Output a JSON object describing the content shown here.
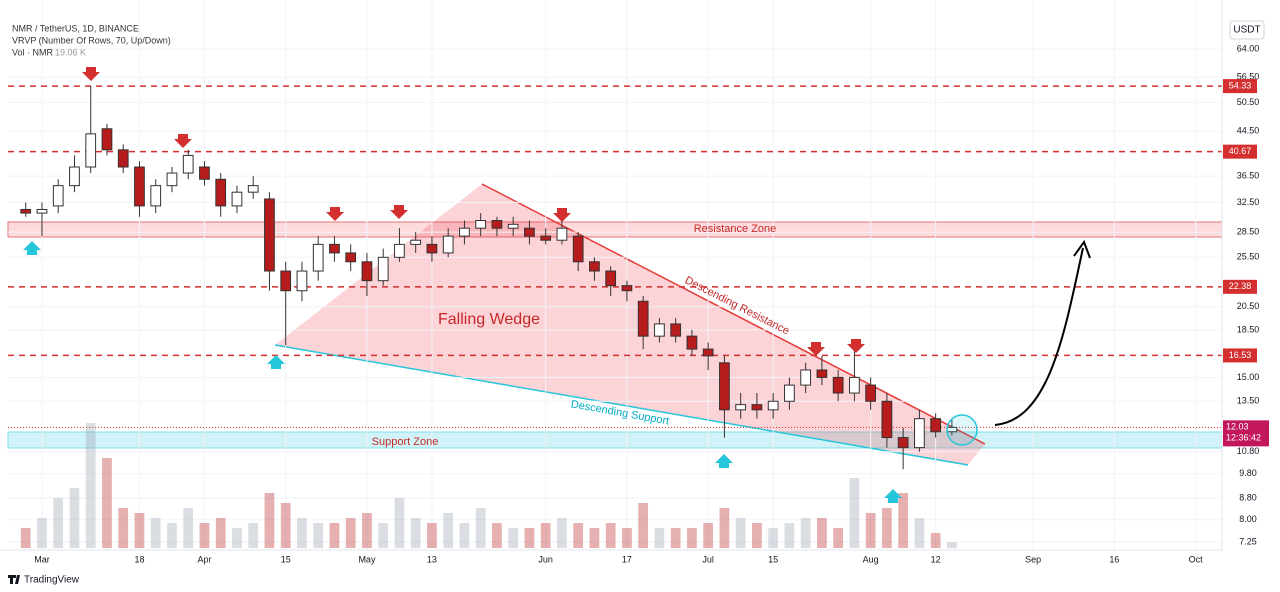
{
  "chart_data": {
    "type": "candlestick",
    "title": "NMR / TetherUS, 1D, BINANCE",
    "indicator": "VRVP (Number Of Rows, 70, Up/Down)",
    "volume_label": "Vol · NMR",
    "volume_value": "19.06 K",
    "currency": "USDT",
    "log_scale": true,
    "grid": true,
    "up_color": "#ffffff",
    "down_color": "#b71c1c",
    "categories": [
      null,
      "Mar",
      null,
      null,
      null,
      null,
      null,
      "18",
      null,
      null,
      null,
      "Apr",
      null,
      null,
      null,
      null,
      "15",
      null,
      null,
      null,
      null,
      "May",
      null,
      null,
      null,
      "13",
      null,
      null,
      null,
      null,
      null,
      null,
      "Jun",
      null,
      null,
      null,
      null,
      "17",
      null,
      null,
      null,
      null,
      "Jul",
      null,
      null,
      null,
      "15",
      null,
      null,
      null,
      null,
      null,
      "Aug",
      null,
      null,
      null,
      "12",
      null,
      null,
      null,
      null,
      null,
      "Sep",
      null,
      null,
      null,
      null,
      "16",
      null,
      null,
      null,
      null,
      "Oct",
      null
    ],
    "open": [
      31.5,
      31,
      32,
      35,
      38,
      45,
      41,
      38,
      32,
      35,
      37,
      38,
      36,
      32,
      34,
      33,
      24,
      22,
      24,
      27,
      26,
      25,
      23,
      25.5,
      27,
      27,
      26,
      28,
      29,
      30,
      29,
      29,
      28,
      27.5,
      28,
      25,
      24,
      22.5,
      21,
      18,
      19,
      18,
      17,
      16,
      13,
      13.3,
      13,
      13.5,
      14.5,
      15.5,
      15,
      14,
      14.5,
      13.5,
      11.5,
      11,
      12.5,
      11.8,
      null,
      null,
      null,
      null,
      null,
      null,
      null,
      null,
      null,
      null,
      null,
      null,
      null,
      null,
      null,
      null
    ],
    "high": [
      32.5,
      32.5,
      36,
      40,
      54.33,
      46,
      42,
      39,
      36,
      38,
      41,
      39,
      37,
      35,
      36.5,
      34,
      25,
      25,
      28,
      28,
      27,
      26,
      26.5,
      29,
      28.5,
      28,
      29,
      30,
      31,
      30.5,
      30.5,
      30,
      29,
      30,
      28.5,
      25.5,
      24.5,
      23,
      21.5,
      19.5,
      19.5,
      18.5,
      17.5,
      16.5,
      14,
      14,
      14,
      15,
      16,
      16.5,
      15.5,
      17,
      15,
      14,
      12,
      13,
      12.8,
      12.5,
      null,
      null,
      null,
      null,
      null,
      null,
      null,
      null,
      null,
      null,
      null,
      null,
      null,
      null,
      null,
      null
    ],
    "low": [
      30.5,
      28,
      31,
      34,
      37,
      40,
      37,
      30.5,
      31,
      34,
      36,
      35,
      30.5,
      31,
      33,
      22,
      17.3,
      21,
      23,
      25,
      24,
      21.5,
      22.5,
      25,
      26,
      25,
      25.5,
      27,
      28,
      28,
      28,
      27,
      27,
      27,
      24,
      23,
      21.5,
      21,
      17,
      17.5,
      17.5,
      16.5,
      15.5,
      11.5,
      12.5,
      12.5,
      12.5,
      13,
      14,
      14.5,
      13.5,
      13.5,
      13,
      11,
      10,
      10.8,
      11.5,
      11.6,
      null,
      null,
      null,
      null,
      null,
      null,
      null,
      null,
      null,
      null,
      null,
      null,
      null,
      null,
      null,
      null
    ],
    "close": [
      31,
      31.5,
      35,
      38,
      44,
      41,
      38,
      32,
      35,
      37,
      40,
      36,
      32,
      34,
      35,
      24,
      22,
      24,
      27,
      26,
      25,
      23,
      25.5,
      27,
      27.5,
      26,
      28,
      29,
      30,
      29,
      29.5,
      28,
      27.5,
      29,
      25,
      24,
      22.5,
      22,
      18,
      19,
      18,
      17,
      16.5,
      13,
      13.3,
      13,
      13.5,
      14.5,
      15.5,
      15,
      14,
      15,
      13.5,
      11.5,
      11,
      12.5,
      11.8,
      12.03,
      null,
      null,
      null,
      null,
      null,
      null,
      null,
      null,
      null,
      null,
      null,
      null,
      null,
      null,
      null,
      null
    ],
    "volume": [
      64,
      96,
      160,
      192,
      400,
      288,
      128,
      112,
      96,
      80,
      128,
      80,
      96,
      64,
      80,
      176,
      144,
      96,
      80,
      80,
      96,
      112,
      80,
      160,
      96,
      80,
      112,
      80,
      128,
      80,
      64,
      64,
      80,
      96,
      80,
      64,
      80,
      64,
      144,
      64,
      64,
      64,
      80,
      128,
      96,
      80,
      64,
      80,
      96,
      96,
      64,
      224,
      112,
      128,
      176,
      96,
      48,
      19.06,
      null,
      null,
      null,
      null,
      null,
      null,
      null,
      null,
      null,
      null,
      null,
      null,
      null,
      null,
      null,
      null
    ],
    "ylim": [
      7.06,
      73.4
    ],
    "yticks": [
      {
        "value": 64,
        "label": "64.00"
      },
      {
        "value": 56.5,
        "label": "56.50"
      },
      {
        "value": 50.5,
        "label": "50.50"
      },
      {
        "value": 44.5,
        "label": "44.50"
      },
      {
        "value": 36.5,
        "label": "36.50"
      },
      {
        "value": 32.5,
        "label": "32.50"
      },
      {
        "value": 28.5,
        "label": "28.50"
      },
      {
        "value": 25.5,
        "label": "25.50"
      },
      {
        "value": 20.5,
        "label": "20.50"
      },
      {
        "value": 18.5,
        "label": "18.50"
      },
      {
        "value": 15,
        "label": "15.00"
      },
      {
        "value": 13.5,
        "label": "13.50"
      },
      {
        "value": 10.8,
        "label": "10.80"
      },
      {
        "value": 9.8,
        "label": "9.80"
      },
      {
        "value": 8.8,
        "label": "8.80"
      },
      {
        "value": 8,
        "label": "8.00"
      },
      {
        "value": 7.25,
        "label": "7.25"
      }
    ],
    "levels": [
      54.33,
      40.67,
      22.38,
      16.53
    ],
    "last_price": 12.03,
    "countdown": "12:36:42",
    "annotations": {
      "resistance_zone": "Resistance Zone",
      "support_zone": "Support Zone",
      "pattern": "Falling Wedge",
      "upper_line": "Descending Resistance",
      "lower_line": "Descending Support"
    }
  },
  "brand": "TradingView"
}
